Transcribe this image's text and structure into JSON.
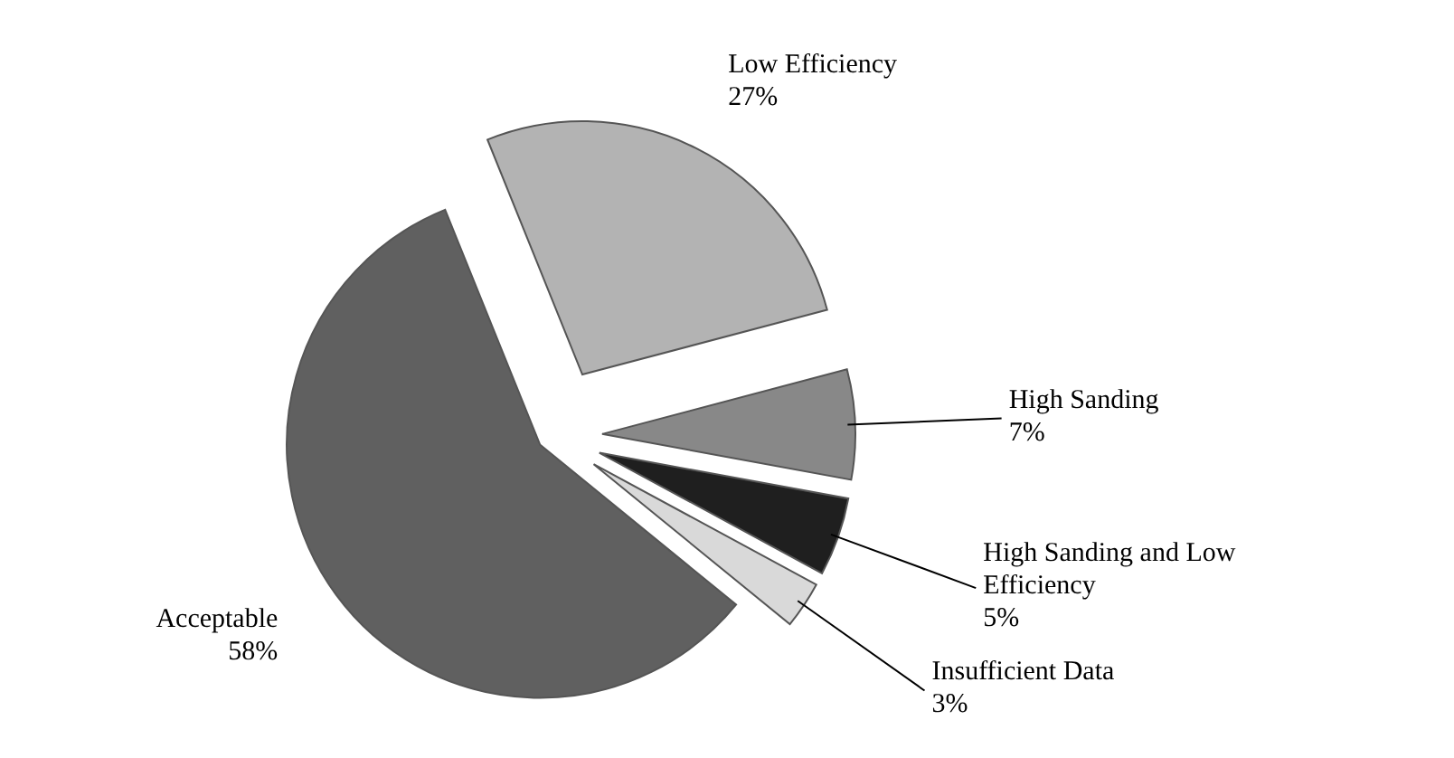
{
  "chart_data": {
    "type": "pie",
    "categories": [
      "Low Efficiency",
      "High Sanding",
      "High Sanding and Low Efficiency",
      "Insufficient Data",
      "Acceptable"
    ],
    "values": [
      27,
      7,
      5,
      3,
      58
    ],
    "value_labels": [
      "27%",
      "7%",
      "5%",
      "3%",
      "58%"
    ],
    "colors": [
      "#b3b3b3",
      "#888888",
      "#1f1f1f",
      "#d9d9d9",
      "#606060"
    ]
  }
}
